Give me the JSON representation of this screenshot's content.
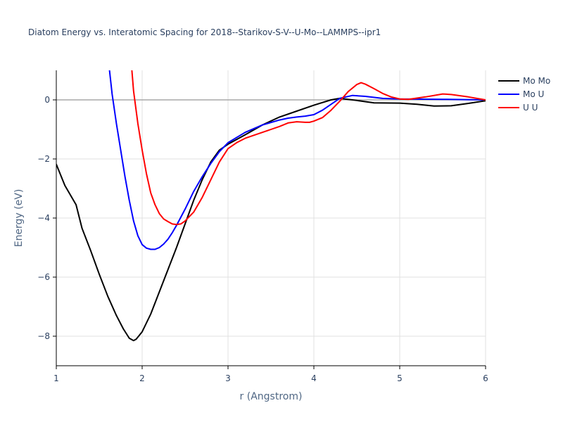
{
  "chart_data": {
    "type": "line",
    "title": "Diatom Energy vs. Interatomic Spacing for 2018--Starikov-S-V--U-Mo--LAMMPS--ipr1",
    "xlabel": "r (Angstrom)",
    "ylabel": "Energy (eV)",
    "xlim": [
      1,
      6
    ],
    "ylim": [
      -9,
      1
    ],
    "xticks": [
      1,
      2,
      3,
      4,
      5,
      6
    ],
    "xtick_labels": [
      "1",
      "2",
      "3",
      "4",
      "5",
      "6"
    ],
    "yticks": [
      -8,
      -6,
      -4,
      -2,
      0
    ],
    "ytick_labels": [
      "−8",
      "−6",
      "−4",
      "−2",
      "0"
    ],
    "grid": true,
    "legend_position": "top-right",
    "series": [
      {
        "name": "Mo Mo",
        "color": "#000000",
        "x": [
          1.0,
          1.1,
          1.2,
          1.23,
          1.3,
          1.4,
          1.5,
          1.6,
          1.7,
          1.78,
          1.85,
          1.9,
          1.93,
          2.0,
          2.1,
          2.2,
          2.3,
          2.4,
          2.5,
          2.6,
          2.7,
          2.8,
          2.9,
          3.0,
          3.2,
          3.4,
          3.6,
          3.8,
          4.0,
          4.2,
          4.3,
          4.5,
          4.7,
          5.0,
          5.2,
          5.4,
          5.6,
          5.8,
          6.0
        ],
        "y": [
          -2.18,
          -2.9,
          -3.4,
          -3.55,
          -4.35,
          -5.1,
          -5.9,
          -6.65,
          -7.3,
          -7.75,
          -8.07,
          -8.15,
          -8.1,
          -7.85,
          -7.25,
          -6.5,
          -5.75,
          -5.0,
          -4.2,
          -3.4,
          -2.7,
          -2.1,
          -1.7,
          -1.5,
          -1.18,
          -0.85,
          -0.58,
          -0.38,
          -0.18,
          0.0,
          0.05,
          -0.02,
          -0.1,
          -0.11,
          -0.15,
          -0.21,
          -0.2,
          -0.12,
          -0.03
        ]
      },
      {
        "name": "Mo U",
        "color": "#0000ff",
        "x": [
          1.62,
          1.65,
          1.7,
          1.75,
          1.8,
          1.85,
          1.9,
          1.95,
          2.0,
          2.05,
          2.1,
          2.15,
          2.2,
          2.25,
          2.3,
          2.35,
          2.4,
          2.5,
          2.6,
          2.7,
          2.8,
          2.9,
          3.0,
          3.2,
          3.4,
          3.6,
          3.7,
          3.8,
          3.9,
          4.0,
          4.1,
          4.2,
          4.3,
          4.45,
          4.6,
          4.8,
          5.0,
          5.5,
          6.0
        ],
        "y": [
          1.0,
          0.2,
          -0.8,
          -1.7,
          -2.6,
          -3.4,
          -4.1,
          -4.6,
          -4.9,
          -5.02,
          -5.06,
          -5.06,
          -5.0,
          -4.88,
          -4.72,
          -4.5,
          -4.25,
          -3.7,
          -3.1,
          -2.6,
          -2.15,
          -1.75,
          -1.45,
          -1.1,
          -0.85,
          -0.68,
          -0.62,
          -0.58,
          -0.55,
          -0.5,
          -0.35,
          -0.15,
          0.05,
          0.15,
          0.12,
          0.05,
          0.03,
          0.02,
          0.0
        ]
      },
      {
        "name": "U U",
        "color": "#ff0000",
        "x": [
          1.88,
          1.9,
          1.95,
          2.0,
          2.05,
          2.1,
          2.15,
          2.2,
          2.25,
          2.3,
          2.35,
          2.4,
          2.45,
          2.5,
          2.6,
          2.7,
          2.8,
          2.9,
          3.0,
          3.1,
          3.2,
          3.4,
          3.6,
          3.7,
          3.8,
          3.9,
          3.95,
          4.0,
          4.1,
          4.2,
          4.3,
          4.4,
          4.5,
          4.55,
          4.6,
          4.7,
          4.8,
          4.9,
          5.0,
          5.1,
          5.3,
          5.5,
          5.6,
          5.8,
          6.0
        ],
        "y": [
          1.0,
          0.3,
          -0.8,
          -1.7,
          -2.5,
          -3.15,
          -3.55,
          -3.85,
          -4.03,
          -4.12,
          -4.2,
          -4.22,
          -4.2,
          -4.1,
          -3.8,
          -3.3,
          -2.7,
          -2.1,
          -1.65,
          -1.45,
          -1.3,
          -1.1,
          -0.9,
          -0.78,
          -0.74,
          -0.76,
          -0.76,
          -0.72,
          -0.6,
          -0.35,
          -0.05,
          0.28,
          0.52,
          0.58,
          0.53,
          0.38,
          0.22,
          0.1,
          0.03,
          0.02,
          0.1,
          0.2,
          0.18,
          0.1,
          0.0
        ]
      }
    ]
  }
}
